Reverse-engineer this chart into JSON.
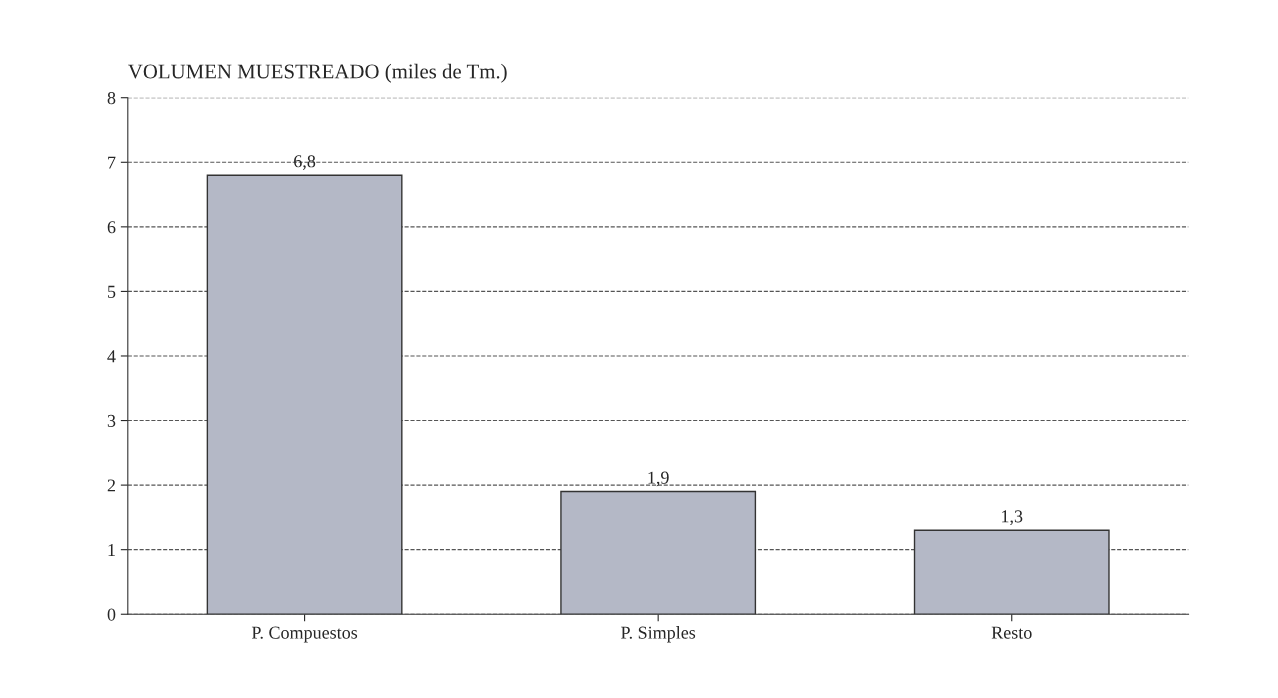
{
  "chart_data": {
    "type": "bar",
    "title": "VOLUMEN MUESTREADO (miles de Tm.)",
    "categories": [
      "P. Compuestos",
      "P. Simples",
      "Resto"
    ],
    "values": [
      6.8,
      1.9,
      1.3
    ],
    "value_labels": [
      "6,8",
      "1,9",
      "1,3"
    ],
    "color": "#b4b8c6",
    "ylim": [
      0,
      8
    ],
    "yticks": [
      0,
      1,
      2,
      3,
      4,
      5,
      6,
      7,
      8
    ],
    "grid": "y",
    "line_style": "dashed"
  }
}
